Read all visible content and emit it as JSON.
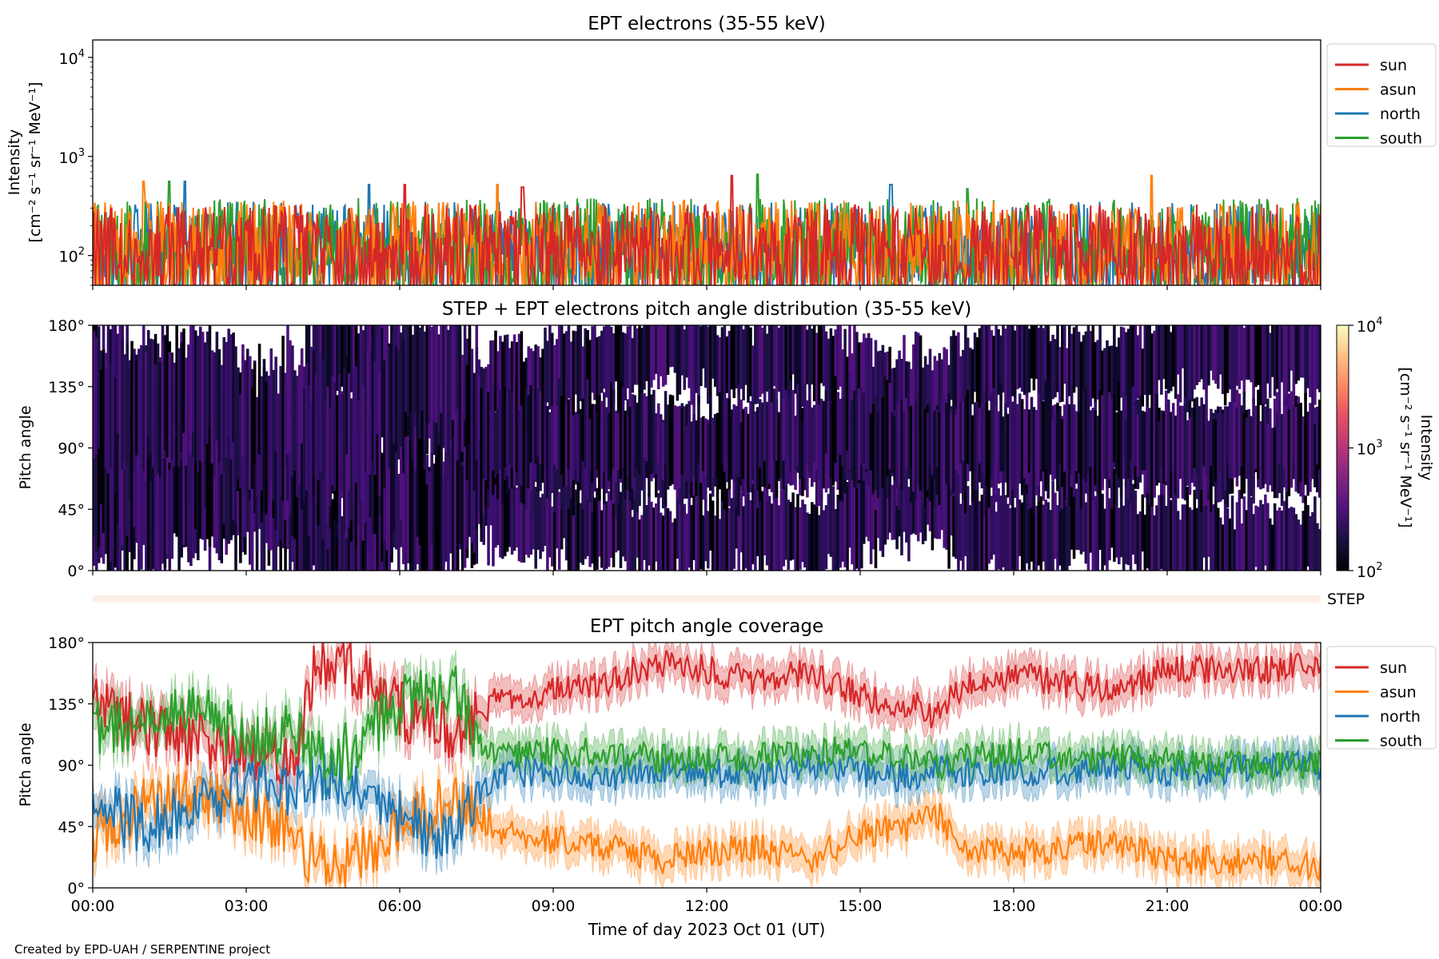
{
  "credit": "Created by EPD-UAH / SERPENTINE project",
  "xlabel": "Time of day 2023 Oct 01 (UT)",
  "x_ticks": [
    "00:00",
    "03:00",
    "06:00",
    "09:00",
    "12:00",
    "15:00",
    "18:00",
    "21:00",
    "00:00"
  ],
  "pitch_ticks": [
    "0°",
    "45°",
    "90°",
    "135°",
    "180°"
  ],
  "colors": {
    "sun": "#d62728",
    "asun": "#ff7f0e",
    "north": "#1f77b4",
    "south": "#2ca02c",
    "step_bar": "#fdeee6"
  },
  "step_label": "STEP",
  "chart_data": [
    {
      "type": "line",
      "title": "EPT electrons (35-55 keV)",
      "ylabel": "Intensity",
      "yunit": "[cm⁻² s⁻¹ sr⁻¹ MeV⁻¹]",
      "yscale": "log",
      "ylim": [
        50,
        15000
      ],
      "y_ticks": [
        {
          "base": "10",
          "exp": "2",
          "value": 100
        },
        {
          "base": "10",
          "exp": "3",
          "value": 1000
        },
        {
          "base": "10",
          "exp": "4",
          "value": 10000
        }
      ],
      "xlim": [
        0,
        24
      ],
      "legend": [
        "sun",
        "asun",
        "north",
        "south"
      ],
      "legend_position": "upper-right-outside",
      "series": [
        {
          "name": "sun",
          "level_range": [
            50,
            330
          ],
          "peaks": [
            [
              12.5,
              640
            ],
            [
              6.1,
              520
            ],
            [
              8.4,
              490
            ]
          ]
        },
        {
          "name": "asun",
          "level_range": [
            50,
            360
          ],
          "peaks": [
            [
              20.7,
              640
            ],
            [
              1.0,
              560
            ],
            [
              7.9,
              520
            ]
          ]
        },
        {
          "name": "north",
          "level_range": [
            50,
            350
          ],
          "peaks": [
            [
              1.8,
              560
            ],
            [
              5.4,
              520
            ],
            [
              15.6,
              520
            ]
          ]
        },
        {
          "name": "south",
          "level_range": [
            50,
            380
          ],
          "peaks": [
            [
              13.0,
              660
            ],
            [
              1.5,
              560
            ],
            [
              17.1,
              470
            ]
          ]
        }
      ]
    },
    {
      "type": "heatmap",
      "title": "STEP + EPT electrons pitch angle distribution (35-55 keV)",
      "ylabel": "Pitch angle",
      "ylim": [
        0,
        180
      ],
      "xlim": [
        0,
        24
      ],
      "colorbar": {
        "label": "Intensity",
        "unit": "[cm⁻² s⁻¹ sr⁻¹ MeV⁻¹]",
        "scale": "log",
        "range": [
          100,
          10000
        ],
        "ticks": [
          {
            "base": "10",
            "exp": "2"
          },
          {
            "base": "10",
            "exp": "3"
          },
          {
            "base": "10",
            "exp": "4"
          }
        ]
      }
    },
    {
      "type": "line",
      "title": "EPT pitch angle coverage",
      "ylabel": "Pitch angle",
      "ylim": [
        0,
        180
      ],
      "xlim": [
        0,
        24
      ],
      "legend": [
        "sun",
        "asun",
        "north",
        "south"
      ],
      "legend_position": "upper-right-outside",
      "series": [
        {
          "name": "sun",
          "x": [
            0,
            1,
            2,
            3,
            4,
            4.3,
            5,
            6,
            7,
            7.5,
            8,
            9,
            10,
            11,
            12,
            13,
            14,
            15,
            16,
            16.5,
            17,
            18,
            19,
            20,
            21,
            22,
            23,
            24
          ],
          "y": [
            140,
            120,
            110,
            95,
            100,
            160,
            165,
            130,
            115,
            125,
            140,
            145,
            150,
            165,
            160,
            150,
            160,
            140,
            135,
            125,
            150,
            155,
            150,
            145,
            160,
            160,
            160,
            165
          ]
        },
        {
          "name": "asun",
          "x": [
            0,
            1,
            2,
            3,
            4,
            4.3,
            5,
            6,
            7,
            7.5,
            8,
            9,
            10,
            11,
            12,
            13,
            14,
            15,
            16,
            16.5,
            17,
            18,
            19,
            20,
            21,
            22,
            23,
            24
          ],
          "y": [
            40,
            60,
            70,
            55,
            40,
            20,
            15,
            50,
            65,
            55,
            40,
            35,
            30,
            20,
            25,
            30,
            20,
            40,
            45,
            55,
            30,
            25,
            30,
            35,
            20,
            20,
            20,
            15
          ]
        },
        {
          "name": "north",
          "x": [
            0,
            1,
            2,
            3,
            4,
            4.3,
            5,
            6,
            7,
            7.5,
            8,
            9,
            10,
            11,
            12,
            13,
            14,
            15,
            16,
            16.5,
            17,
            18,
            19,
            20,
            21,
            22,
            23,
            24
          ],
          "y": [
            60,
            45,
            60,
            75,
            70,
            80,
            80,
            50,
            35,
            70,
            85,
            85,
            80,
            85,
            85,
            80,
            90,
            85,
            80,
            90,
            85,
            85,
            85,
            90,
            85,
            85,
            90,
            90
          ]
        },
        {
          "name": "south",
          "x": [
            0,
            1,
            2,
            3,
            4,
            4.3,
            5,
            6,
            7,
            7.5,
            8,
            9,
            10,
            11,
            12,
            13,
            14,
            15,
            16,
            16.5,
            17,
            18,
            19,
            20,
            21,
            22,
            23,
            24
          ],
          "y": [
            115,
            125,
            130,
            110,
            115,
            100,
            100,
            135,
            150,
            110,
            95,
            100,
            100,
            95,
            95,
            95,
            100,
            100,
            95,
            90,
            95,
            100,
            95,
            95,
            95,
            90,
            90,
            90
          ]
        }
      ]
    }
  ]
}
